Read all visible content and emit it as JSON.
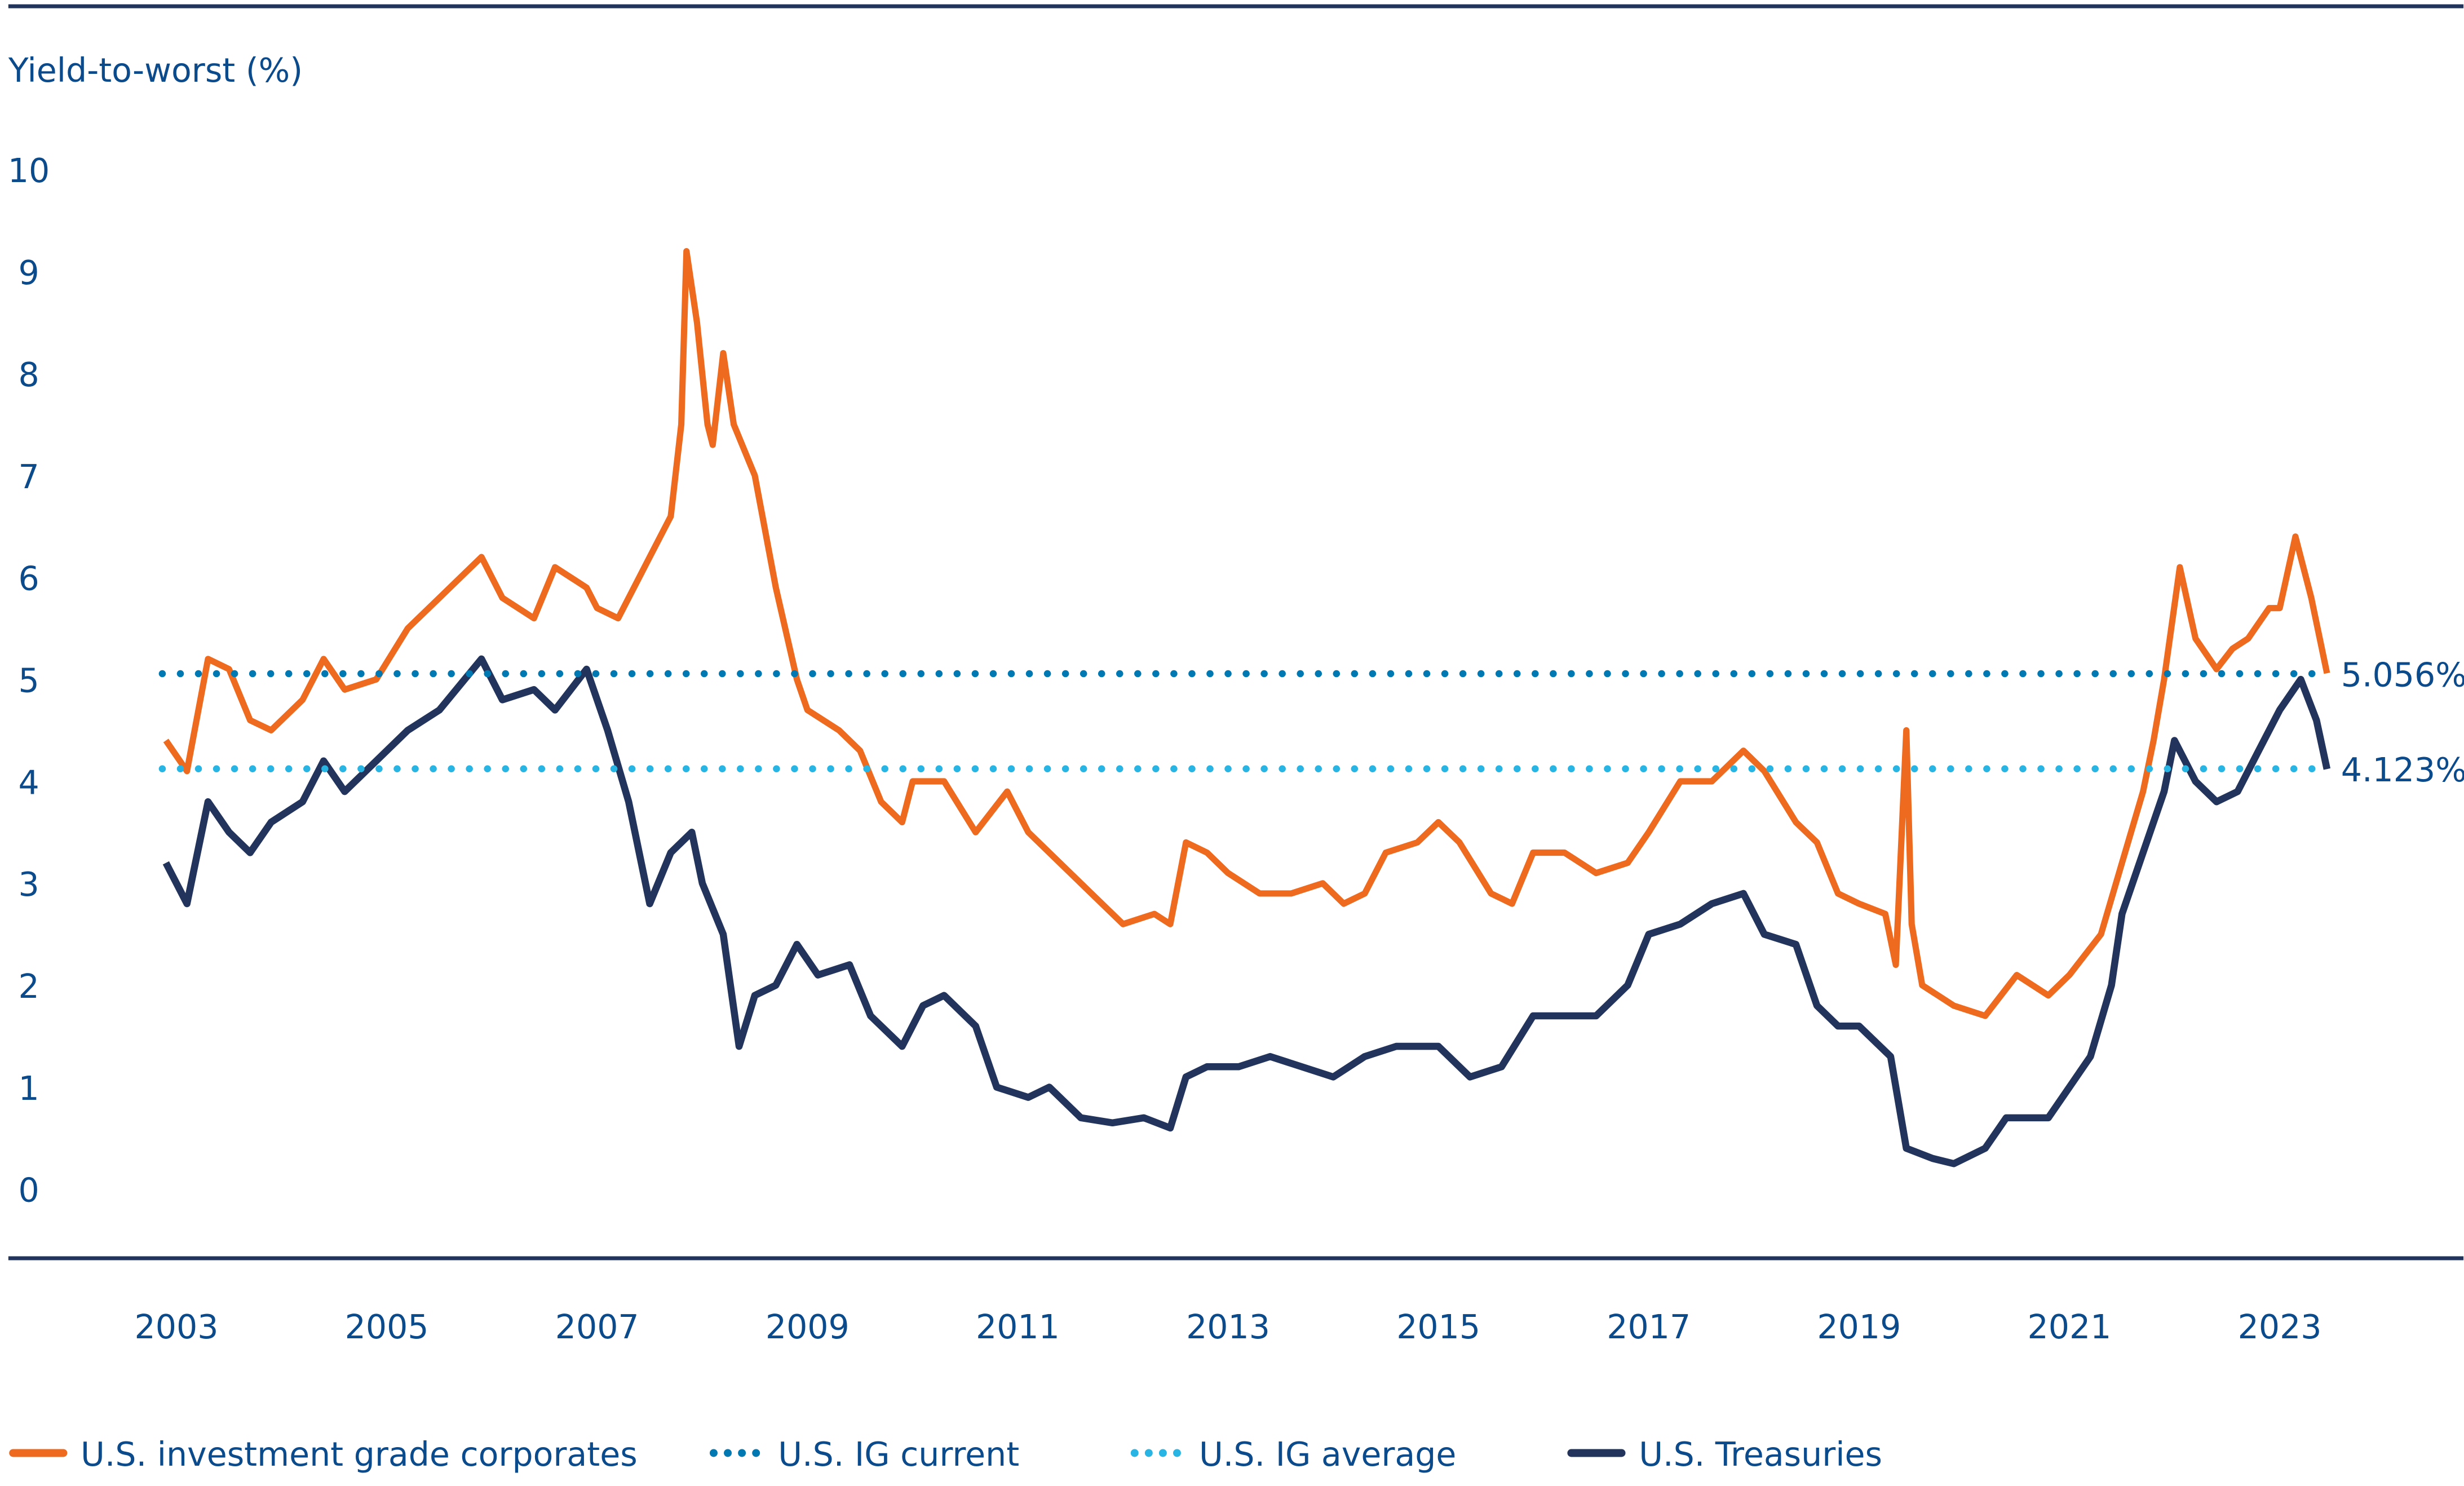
{
  "chart_data": {
    "type": "line",
    "ylabel": "Yield-to-worst (%)",
    "xlabel": "",
    "ylim": [
      0,
      10
    ],
    "xlim": [
      2002.6,
      2024.3
    ],
    "yticks": [
      0,
      1,
      2,
      3,
      4,
      5,
      6,
      7,
      8,
      9,
      10
    ],
    "xticks": [
      2003,
      2005,
      2007,
      2009,
      2011,
      2013,
      2015,
      2017,
      2019,
      2021,
      2023
    ],
    "grid": false,
    "legend_position": "bottom",
    "colors": {
      "ig": "#EE6A1F",
      "treasuries": "#22345C",
      "current": "#0079B3",
      "average": "#29B5E3",
      "text": "#0B4A8B"
    },
    "reference_lines": [
      {
        "name": "U.S. IG current",
        "value": 5.056,
        "label": "5.056%"
      },
      {
        "name": "U.S. IG average",
        "value": 4.123,
        "label": "4.123%"
      }
    ],
    "series": [
      {
        "name": "U.S. investment grade corporates",
        "key": "ig",
        "x": [
          2002.9,
          2003.1,
          2003.3,
          2003.5,
          2003.7,
          2003.9,
          2004.2,
          2004.4,
          2004.6,
          2004.9,
          2005.2,
          2005.5,
          2005.9,
          2006.1,
          2006.4,
          2006.6,
          2006.9,
          2007.0,
          2007.2,
          2007.5,
          2007.7,
          2007.8,
          2007.85,
          2007.95,
          2008.05,
          2008.1,
          2008.2,
          2008.3,
          2008.5,
          2008.7,
          2008.9,
          2009.0,
          2009.3,
          2009.5,
          2009.7,
          2009.9,
          2010.0,
          2010.3,
          2010.6,
          2010.9,
          2011.1,
          2011.3,
          2011.6,
          2011.9,
          2012.0,
          2012.3,
          2012.45,
          2012.6,
          2012.8,
          2013.0,
          2013.3,
          2013.6,
          2013.9,
          2014.1,
          2014.3,
          2014.5,
          2014.8,
          2015.0,
          2015.2,
          2015.5,
          2015.7,
          2015.9,
          2016.2,
          2016.5,
          2016.8,
          2017.0,
          2017.3,
          2017.6,
          2017.9,
          2018.1,
          2018.4,
          2018.6,
          2018.8,
          2019.0,
          2019.25,
          2019.35,
          2019.45,
          2019.5,
          2019.6,
          2019.9,
          2020.2,
          2020.5,
          2020.8,
          2021.0,
          2021.3,
          2021.5,
          2021.7,
          2021.8,
          2021.9,
          2022.05,
          2022.2,
          2022.4,
          2022.55,
          2022.7,
          2022.9,
          2023.0,
          2023.15,
          2023.3,
          2023.45
        ],
        "y": [
          4.4,
          4.1,
          5.2,
          5.1,
          4.6,
          4.5,
          4.8,
          5.2,
          4.9,
          5.0,
          5.5,
          5.8,
          6.2,
          5.8,
          5.6,
          6.1,
          5.9,
          5.7,
          5.6,
          6.2,
          6.6,
          7.5,
          9.2,
          8.5,
          7.5,
          7.3,
          8.2,
          7.5,
          7.0,
          5.9,
          5.0,
          4.7,
          4.5,
          4.3,
          3.8,
          3.6,
          4.0,
          4.0,
          3.5,
          3.9,
          3.5,
          3.3,
          3.0,
          2.7,
          2.6,
          2.7,
          2.6,
          3.4,
          3.3,
          3.1,
          2.9,
          2.9,
          3.0,
          2.8,
          2.9,
          3.3,
          3.4,
          3.6,
          3.4,
          2.9,
          2.8,
          3.3,
          3.3,
          3.1,
          3.2,
          3.5,
          4.0,
          4.0,
          4.3,
          4.1,
          3.6,
          3.4,
          2.9,
          2.8,
          2.7,
          2.2,
          4.5,
          2.6,
          2.0,
          1.8,
          1.7,
          2.1,
          1.9,
          2.1,
          2.5,
          3.2,
          3.9,
          4.4,
          5.0,
          6.1,
          5.4,
          5.1,
          5.3,
          5.4,
          5.7,
          5.7,
          6.4,
          5.8,
          5.06
        ]
      },
      {
        "name": "U.S. Treasuries",
        "key": "treasuries",
        "x": [
          2002.9,
          2003.1,
          2003.3,
          2003.5,
          2003.7,
          2003.9,
          2004.2,
          2004.4,
          2004.6,
          2004.9,
          2005.2,
          2005.5,
          2005.9,
          2006.1,
          2006.4,
          2006.6,
          2006.9,
          2007.1,
          2007.3,
          2007.5,
          2007.7,
          2007.9,
          2008.0,
          2008.2,
          2008.35,
          2008.5,
          2008.7,
          2008.9,
          2009.1,
          2009.4,
          2009.6,
          2009.9,
          2010.1,
          2010.3,
          2010.6,
          2010.8,
          2011.1,
          2011.3,
          2011.6,
          2011.9,
          2012.2,
          2012.45,
          2012.6,
          2012.8,
          2013.1,
          2013.4,
          2013.7,
          2014.0,
          2014.3,
          2014.6,
          2015.0,
          2015.3,
          2015.6,
          2015.9,
          2016.2,
          2016.5,
          2016.8,
          2017.0,
          2017.3,
          2017.6,
          2017.9,
          2018.1,
          2018.4,
          2018.6,
          2018.8,
          2019.0,
          2019.3,
          2019.45,
          2019.7,
          2019.9,
          2020.2,
          2020.4,
          2020.6,
          2020.8,
          2021.0,
          2021.2,
          2021.4,
          2021.5,
          2021.7,
          2021.9,
          2022.0,
          2022.2,
          2022.4,
          2022.6,
          2022.8,
          2023.0,
          2023.2,
          2023.35,
          2023.45
        ],
        "y": [
          3.2,
          2.8,
          3.8,
          3.5,
          3.3,
          3.6,
          3.8,
          4.2,
          3.9,
          4.2,
          4.5,
          4.7,
          5.2,
          4.8,
          4.9,
          4.7,
          5.1,
          4.5,
          3.8,
          2.8,
          3.3,
          3.5,
          3.0,
          2.5,
          1.4,
          1.9,
          2.0,
          2.4,
          2.1,
          2.2,
          1.7,
          1.4,
          1.8,
          1.9,
          1.6,
          1.0,
          0.9,
          1.0,
          0.7,
          0.65,
          0.7,
          0.6,
          1.1,
          1.2,
          1.2,
          1.3,
          1.2,
          1.1,
          1.3,
          1.4,
          1.4,
          1.1,
          1.2,
          1.7,
          1.7,
          1.7,
          2.0,
          2.5,
          2.6,
          2.8,
          2.9,
          2.5,
          2.4,
          1.8,
          1.6,
          1.6,
          1.3,
          0.4,
          0.3,
          0.25,
          0.4,
          0.7,
          0.7,
          0.7,
          1.0,
          1.3,
          2.0,
          2.7,
          3.3,
          3.9,
          4.4,
          4.0,
          3.8,
          3.9,
          4.3,
          4.7,
          5.0,
          4.6,
          4.12
        ]
      }
    ],
    "legend": [
      {
        "label": "U.S. investment grade corporates",
        "key": "ig",
        "style": "solid"
      },
      {
        "label": "U.S. IG current",
        "key": "current",
        "style": "dotted"
      },
      {
        "label": "U.S. IG average",
        "key": "average",
        "style": "dotted"
      },
      {
        "label": "U.S. Treasuries",
        "key": "treasuries",
        "style": "solid"
      }
    ]
  }
}
